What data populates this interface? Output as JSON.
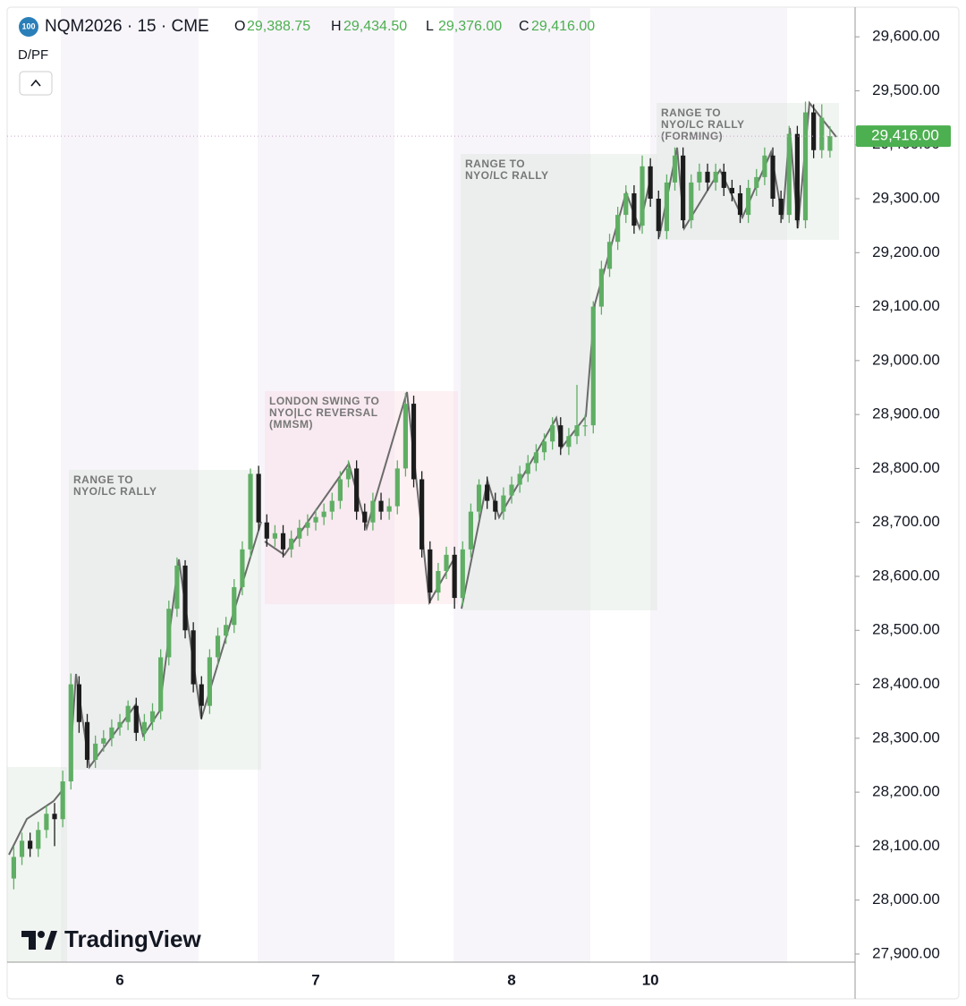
{
  "header": {
    "icon": "100",
    "symbol": "NQM2026 · 15 · CME",
    "ohlc": [
      {
        "key": "O",
        "value": "29,388.75"
      },
      {
        "key": "H",
        "value": "29,434.50"
      },
      {
        "key": "L",
        "value": "29,376.00"
      },
      {
        "key": "C",
        "value": "29,416.00"
      }
    ],
    "indicator": "D/PF"
  },
  "watermark": "TradingView",
  "chart_data": {
    "type": "candlestick",
    "categories": [
      null,
      null,
      null,
      null,
      null,
      null,
      null,
      null,
      null,
      null,
      null,
      null,
      null,
      "6",
      null,
      null,
      null,
      null,
      null,
      null,
      null,
      null,
      null,
      null,
      null,
      null,
      null,
      null,
      null,
      null,
      null,
      null,
      null,
      null,
      null,
      null,
      null,
      "7",
      null,
      null,
      null,
      null,
      null,
      null,
      null,
      null,
      null,
      null,
      null,
      null,
      null,
      null,
      null,
      null,
      null,
      null,
      null,
      null,
      null,
      null,
      null,
      "8",
      null,
      null,
      null,
      null,
      null,
      null,
      null,
      null,
      null,
      null,
      null,
      null,
      null,
      null,
      null,
      null,
      "10",
      null,
      null,
      null,
      null,
      null,
      null,
      null,
      null,
      null,
      null,
      null,
      null,
      null,
      null,
      null,
      null,
      null,
      null,
      null,
      null,
      null,
      null
    ],
    "open": [
      28040,
      28080,
      28110,
      28095,
      28130,
      28160,
      28150,
      28220,
      28400,
      28330,
      28260,
      28290,
      28300,
      28320,
      28330,
      28360,
      28310,
      28330,
      28350,
      28450,
      28540,
      28620,
      28500,
      28400,
      28360,
      28450,
      28490,
      28510,
      28580,
      28650,
      28790,
      28700,
      28670,
      28680,
      28650,
      28670,
      28690,
      28700,
      28710,
      28720,
      28740,
      28780,
      28800,
      28720,
      28700,
      28740,
      28720,
      28730,
      28800,
      28920,
      28780,
      28650,
      28570,
      28610,
      28640,
      28560,
      28650,
      28720,
      28770,
      28740,
      28720,
      28750,
      28770,
      28790,
      28810,
      28830,
      28850,
      28880,
      28840,
      28860,
      28880,
      28880,
      29100,
      29170,
      29220,
      29270,
      29310,
      29250,
      29360,
      29300,
      29240,
      29330,
      29380,
      29260,
      29330,
      29350,
      29330,
      29350,
      29320,
      29310,
      29270,
      29320,
      29340,
      29380,
      29300,
      29270,
      29420,
      29260,
      29460,
      29390,
      29388.75
    ],
    "high": [
      28100,
      28125,
      28125,
      28145,
      28175,
      28180,
      28240,
      28420,
      28415,
      28345,
      28305,
      28315,
      28335,
      28345,
      28370,
      28375,
      28345,
      28365,
      28465,
      28555,
      28635,
      28630,
      28515,
      28415,
      28465,
      28505,
      28525,
      28595,
      28665,
      28800,
      28805,
      28715,
      28695,
      28695,
      28685,
      28705,
      28715,
      28725,
      28735,
      28755,
      28795,
      28815,
      28815,
      28735,
      28755,
      28755,
      28745,
      28815,
      28940,
      28935,
      28795,
      28665,
      28625,
      28655,
      28655,
      28665,
      28735,
      28780,
      28785,
      28755,
      28765,
      28785,
      28805,
      28825,
      28845,
      28865,
      28895,
      28895,
      28875,
      28955,
      28900,
      29110,
      29185,
      29235,
      29285,
      29325,
      29325,
      29380,
      29375,
      29315,
      29345,
      29395,
      29395,
      29345,
      29365,
      29365,
      29365,
      29365,
      29335,
      29325,
      29335,
      29355,
      29395,
      29395,
      29315,
      29435,
      29435,
      29480,
      29475,
      29475,
      29434.5
    ],
    "low": [
      28020,
      28065,
      28080,
      28080,
      28115,
      28100,
      28135,
      28205,
      28310,
      28245,
      28245,
      28275,
      28285,
      28305,
      28315,
      28295,
      28295,
      28315,
      28335,
      28435,
      28525,
      28485,
      28385,
      28335,
      28345,
      28435,
      28475,
      28495,
      28565,
      28635,
      28685,
      28655,
      28655,
      28635,
      28635,
      28655,
      28675,
      28685,
      28695,
      28705,
      28725,
      28765,
      28705,
      28685,
      28685,
      28705,
      28705,
      28715,
      28785,
      28765,
      28635,
      28550,
      28555,
      28595,
      28540,
      28545,
      28635,
      28705,
      28725,
      28705,
      28705,
      28735,
      28755,
      28775,
      28795,
      28815,
      28835,
      28825,
      28825,
      28845,
      28860,
      28865,
      29085,
      29155,
      29205,
      29255,
      29235,
      29235,
      29285,
      29225,
      29225,
      29315,
      29245,
      29245,
      29315,
      29315,
      29315,
      29305,
      29295,
      29255,
      29255,
      29305,
      29325,
      29285,
      29255,
      29255,
      29245,
      29245,
      29375,
      29375,
      29376
    ],
    "close": [
      28080,
      28110,
      28095,
      28130,
      28160,
      28150,
      28220,
      28400,
      28330,
      28260,
      28290,
      28300,
      28320,
      28330,
      28360,
      28310,
      28330,
      28350,
      28450,
      28540,
      28620,
      28500,
      28400,
      28360,
      28450,
      28490,
      28510,
      28580,
      28650,
      28790,
      28700,
      28670,
      28680,
      28650,
      28670,
      28690,
      28700,
      28710,
      28720,
      28740,
      28780,
      28800,
      28720,
      28700,
      28740,
      28720,
      28730,
      28800,
      28920,
      28780,
      28650,
      28570,
      28610,
      28640,
      28560,
      28650,
      28720,
      28770,
      28740,
      28720,
      28750,
      28770,
      28790,
      28810,
      28830,
      28850,
      28880,
      28840,
      28860,
      28880,
      28880,
      29100,
      29170,
      29220,
      29270,
      29310,
      29250,
      29360,
      29300,
      29240,
      29330,
      29380,
      29260,
      29330,
      29350,
      29330,
      29350,
      29320,
      29310,
      29270,
      29320,
      29340,
      29380,
      29300,
      29270,
      29420,
      29260,
      29460,
      29390,
      29450,
      29416
    ],
    "up_color": "#5fae64",
    "down_color": "#1c1c1c",
    "ylim": [
      27885,
      29655
    ],
    "yticks": [
      {
        "value": 27900,
        "label": "27,900.00"
      },
      {
        "value": 28000,
        "label": "28,000.00"
      },
      {
        "value": 28100,
        "label": "28,100.00"
      },
      {
        "value": 28200,
        "label": "28,200.00"
      },
      {
        "value": 28300,
        "label": "28,300.00"
      },
      {
        "value": 28400,
        "label": "28,400.00"
      },
      {
        "value": 28500,
        "label": "28,500.00"
      },
      {
        "value": 28600,
        "label": "28,600.00"
      },
      {
        "value": 28700,
        "label": "28,700.00"
      },
      {
        "value": 28800,
        "label": "28,800.00"
      },
      {
        "value": 28900,
        "label": "28,900.00"
      },
      {
        "value": 29000,
        "label": "29,000.00"
      },
      {
        "value": 29100,
        "label": "29,100.00"
      },
      {
        "value": 29200,
        "label": "29,200.00"
      },
      {
        "value": 29300,
        "label": "29,300.00"
      },
      {
        "value": 29400,
        "label": "29,400.00"
      },
      {
        "value": 29500,
        "label": "29,500.00"
      },
      {
        "value": 29600,
        "label": "29,600.00"
      }
    ],
    "last_price": {
      "value": 29416,
      "label": "29,416.00"
    },
    "annotations": [
      {
        "lines": [
          "RANGE TO",
          "NYO/LC RALLY"
        ]
      },
      {
        "lines": [
          "LONDON SWING TO",
          "NYO|LC REVERSAL",
          "(MMSM)"
        ]
      },
      {
        "lines": [
          "RANGE TO",
          "NYO/LC RALLY"
        ]
      },
      {
        "lines": [
          "RANGE TO",
          "NYO/LC RALLY",
          "(FORMING)"
        ]
      }
    ]
  }
}
